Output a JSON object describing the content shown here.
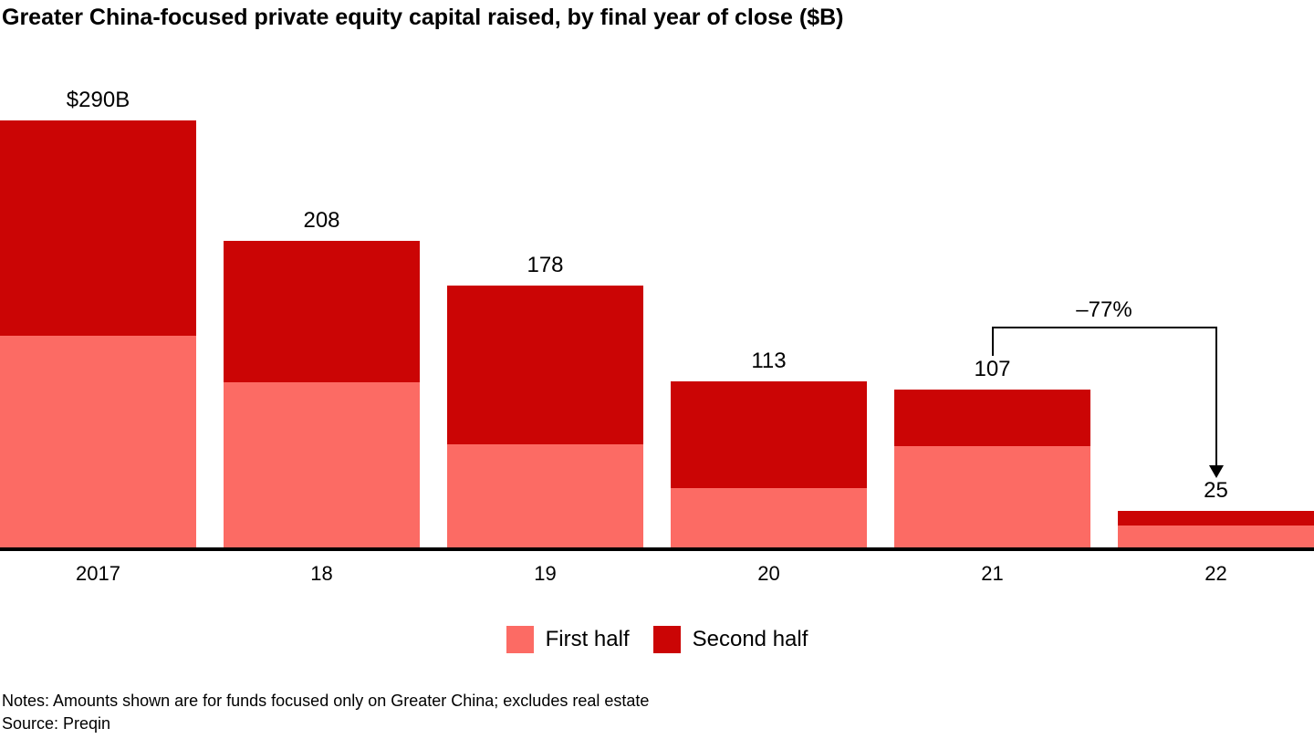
{
  "title": "Greater China-focused private equity capital raised, by final year of close ($B)",
  "chart_data": {
    "type": "bar",
    "stacked": true,
    "title": "Greater China-focused private equity capital raised, by final year of close ($B)",
    "categories": [
      "2017",
      "18",
      "19",
      "20",
      "21",
      "22"
    ],
    "series": [
      {
        "name": "First half",
        "color": "#fc6b64",
        "values": [
          144,
          112,
          70,
          40,
          69,
          15
        ]
      },
      {
        "name": "Second half",
        "color": "#cb0505",
        "values": [
          146,
          96,
          108,
          73,
          38,
          10
        ]
      }
    ],
    "totals": [
      290,
      208,
      178,
      113,
      107,
      25
    ],
    "total_labels": [
      "$290B",
      "208",
      "178",
      "113",
      "107",
      "25"
    ],
    "unit": "$B",
    "ylim": [
      0,
      290
    ],
    "gridlines": false,
    "value_axis_hidden": true,
    "legend_position": "bottom"
  },
  "annotation": {
    "label": "–77%",
    "from_category": "21",
    "to_category": "22"
  },
  "legend": [
    {
      "label": "First half",
      "color": "#fc6b64"
    },
    {
      "label": "Second half",
      "color": "#cb0505"
    }
  ],
  "footer": {
    "notes": "Notes: Amounts shown are for funds focused only on Greater China; excludes real estate",
    "source": "Source: Preqin"
  }
}
